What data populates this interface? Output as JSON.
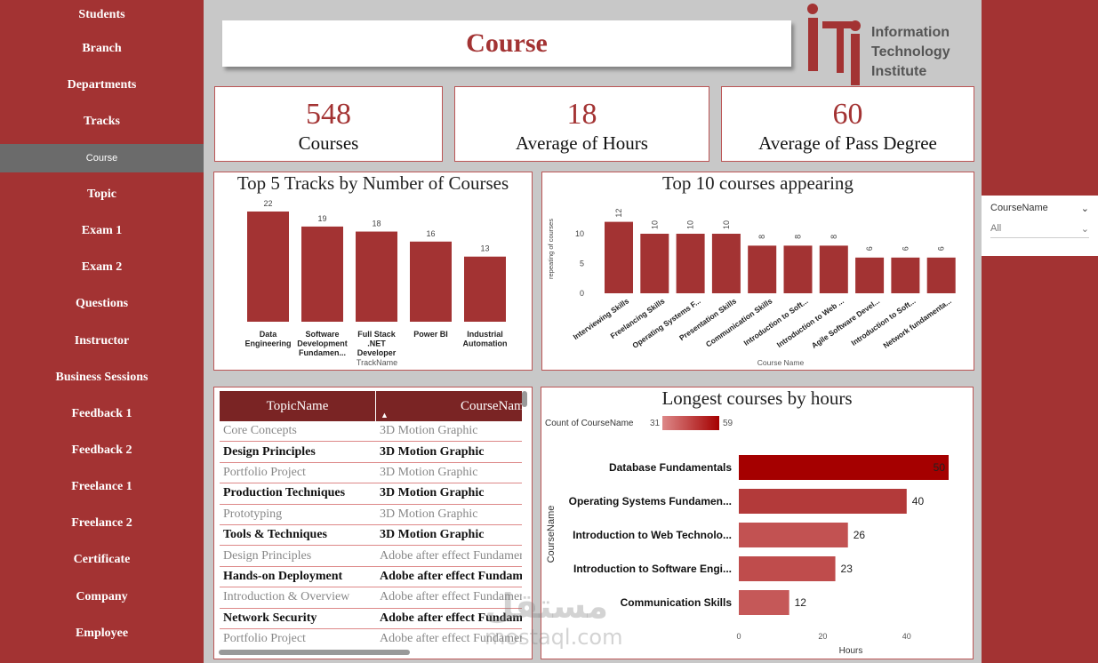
{
  "nav": {
    "items": [
      {
        "label": "Students"
      },
      {
        "label": "Branch"
      },
      {
        "label": "Departments"
      },
      {
        "label": "Tracks"
      },
      {
        "label": "Course",
        "active": true
      },
      {
        "label": "Topic"
      },
      {
        "label": "Exam 1"
      },
      {
        "label": "Exam 2"
      },
      {
        "label": "Questions"
      },
      {
        "label": "Instructor"
      },
      {
        "label": "Business Sessions"
      },
      {
        "label": "Feedback 1"
      },
      {
        "label": "Feedback 2"
      },
      {
        "label": "Freelance 1"
      },
      {
        "label": "Freelance 2"
      },
      {
        "label": "Certificate"
      },
      {
        "label": "Company"
      },
      {
        "label": "Employee"
      }
    ]
  },
  "header": {
    "title": "Course",
    "logo": {
      "line1": "Information",
      "line2": "Technology",
      "line3": "Institute",
      "icon": "iti-logo"
    }
  },
  "kpis": [
    {
      "value": "548",
      "label": "Courses"
    },
    {
      "value": "18",
      "label": "Average of Hours"
    },
    {
      "value": "60",
      "label": "Average of Pass Degree"
    }
  ],
  "slicer": {
    "title": "CourseName",
    "value": "All",
    "icon": "chevron-down-icon"
  },
  "table": {
    "columns": [
      "TopicName",
      "CourseName"
    ],
    "rows": [
      [
        "Core Concepts",
        "3D Motion Graphic"
      ],
      [
        "Design Principles",
        "3D Motion Graphic"
      ],
      [
        "Portfolio Project",
        "3D Motion Graphic"
      ],
      [
        "Production Techniques",
        "3D Motion Graphic"
      ],
      [
        "Prototyping",
        "3D Motion Graphic"
      ],
      [
        "Tools & Techniques",
        "3D Motion Graphic"
      ],
      [
        "Design Principles",
        "Adobe after effect Fundamentals"
      ],
      [
        "Hands-on Deployment",
        "Adobe after effect Fundamentals"
      ],
      [
        "Introduction & Overview",
        "Adobe after effect Fundamentals"
      ],
      [
        "Network Security",
        "Adobe after effect Fundamentals"
      ],
      [
        "Portfolio Project",
        "Adobe after effect Fundamentals"
      ]
    ]
  },
  "watermark": {
    "line1": "مستقل",
    "line2": "mostaql.com"
  },
  "chart_data": [
    {
      "type": "bar",
      "title": "Top 5 Tracks by Number of Courses",
      "xlabel": "TrackName",
      "ylabel": "",
      "categories": [
        [
          "Data",
          "Engineering"
        ],
        [
          "Software",
          "Development",
          "Fundamen..."
        ],
        [
          "Full Stack",
          ".NET",
          "Developer"
        ],
        [
          "Power BI"
        ],
        [
          "Industrial",
          "Automation"
        ]
      ],
      "values": [
        22,
        19,
        18,
        16,
        13
      ],
      "color": "#a33333"
    },
    {
      "type": "bar",
      "title": "Top 10 courses appearing",
      "xlabel": "Course Name",
      "ylabel": "repeating of courses",
      "categories": [
        "Interviewing Skills",
        "Freelancing Skills",
        "Operating Systems F...",
        "Presentation Skills",
        "Communication Skills",
        "Introduction to Soft...",
        "Introduction to Web ...",
        "Agile Software Devel...",
        "Introduction to Soft...",
        "Network fundamenta..."
      ],
      "values": [
        12,
        10,
        10,
        10,
        8,
        8,
        8,
        6,
        6,
        6
      ],
      "yticks": [
        0,
        5,
        10
      ],
      "ylim": [
        0,
        13
      ],
      "color": "#a33333"
    },
    {
      "type": "bar",
      "orientation": "horizontal",
      "title": "Longest courses by hours",
      "xlabel": "Hours",
      "ylabel": "CourseName",
      "legend": {
        "label": "Count of CourseName",
        "min": "31",
        "max": "59"
      },
      "categories": [
        "Database Fundamentals",
        "Operating Systems Fundamen...",
        "Introduction to Web Technolo...",
        "Introduction to Software Engi...",
        "Communication Skills"
      ],
      "values": [
        50,
        40,
        26,
        23,
        12
      ],
      "data_labels": [
        "50",
        "40",
        "26",
        "23",
        "12"
      ],
      "xticks": [
        0,
        20,
        40
      ],
      "xlim": [
        0,
        50
      ],
      "colors": [
        "#a50000",
        "#b33a3a",
        "#c25252",
        "#bf4c4c",
        "#c55858"
      ]
    }
  ]
}
